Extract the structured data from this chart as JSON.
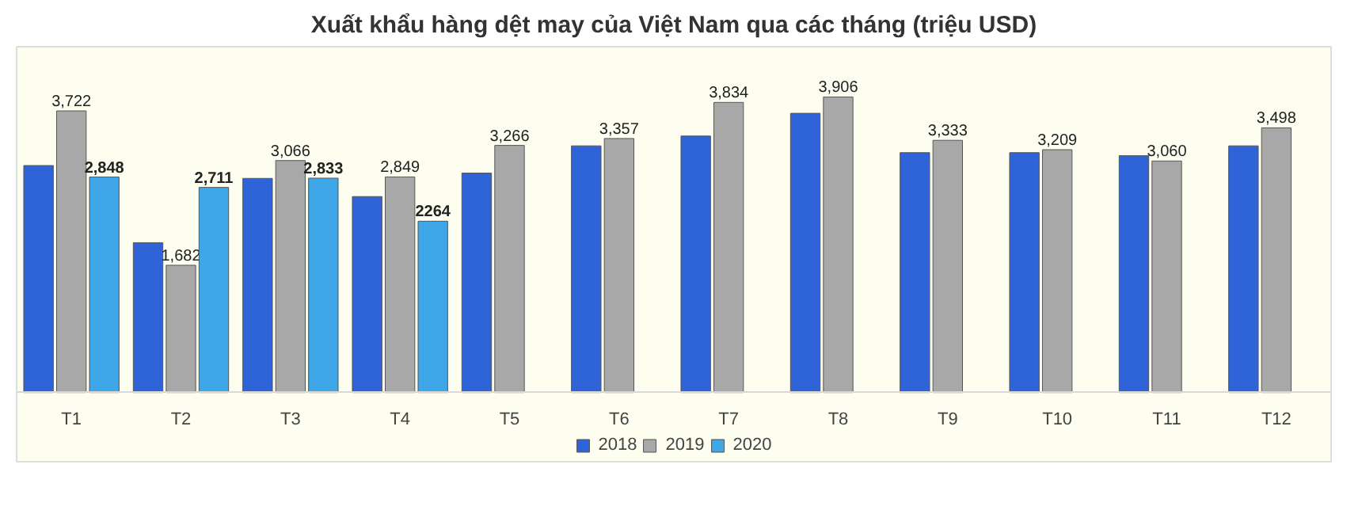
{
  "chart_data": {
    "type": "bar",
    "title": "Xuất khẩu hàng dệt may của Việt Nam qua các tháng (triệu USD)",
    "categories": [
      "T1",
      "T2",
      "T3",
      "T4",
      "T5",
      "T6",
      "T7",
      "T8",
      "T9",
      "T10",
      "T11",
      "T12"
    ],
    "series": [
      {
        "name": "2018",
        "color": "#2e64d8",
        "values": [
          3000,
          1980,
          2830,
          2590,
          2900,
          3260,
          3390,
          3690,
          3170,
          3170,
          3130,
          3260
        ]
      },
      {
        "name": "2019",
        "color": "#a8a8a8",
        "values": [
          3722,
          1682,
          3066,
          2849,
          3266,
          3357,
          3834,
          3906,
          3333,
          3209,
          3060,
          3498
        ],
        "value_labels": [
          "3,722",
          "1,682",
          "3,066",
          "2,849",
          "3,266",
          "3,357",
          "3,834",
          "3,906",
          "3,333",
          "3,209",
          "3,060",
          "3,498"
        ]
      },
      {
        "name": "2020",
        "color": "#3fa6e8",
        "values": [
          2848,
          2711,
          2833,
          2264,
          null,
          null,
          null,
          null,
          null,
          null,
          null,
          null
        ],
        "value_labels": [
          "2,848",
          "2,711",
          "2,833",
          "2264",
          null,
          null,
          null,
          null,
          null,
          null,
          null,
          null
        ]
      }
    ],
    "tick_labels": "x",
    "legend": "bottom"
  }
}
